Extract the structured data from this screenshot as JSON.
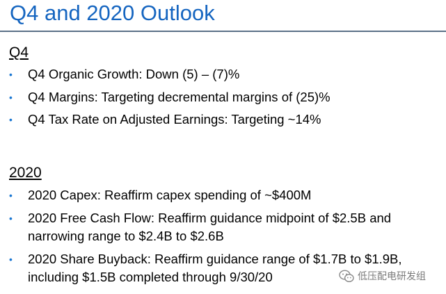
{
  "title": "Q4 and 2020 Outlook",
  "colors": {
    "title": "#1565c0",
    "bullet": "#1976d2",
    "rule": "#5a6f86"
  },
  "sections": [
    {
      "heading": "Q4",
      "items": [
        {
          "lines": [
            "Q4 Organic Growth: Down (5) – (7)%"
          ]
        },
        {
          "lines": [
            "Q4 Margins: Targeting decremental margins of (25)%"
          ]
        },
        {
          "lines": [
            "Q4 Tax Rate on Adjusted Earnings: Targeting ~14%"
          ]
        }
      ]
    },
    {
      "heading": "2020",
      "items": [
        {
          "lines": [
            "2020 Capex: Reaffirm capex spending of ~$400M"
          ]
        },
        {
          "lines": [
            "2020 Free Cash Flow: Reaffirm guidance midpoint of $2.5B and",
            "narrowing range to $2.4B to $2.6B"
          ]
        },
        {
          "lines": [
            "2020 Share Buyback: Reaffirm guidance range of $1.7B to $1.9B,",
            "including $1.5B completed through 9/30/20"
          ]
        }
      ]
    }
  ],
  "watermark": {
    "icon": "wechat-icon",
    "text": "低压配电研发组"
  }
}
